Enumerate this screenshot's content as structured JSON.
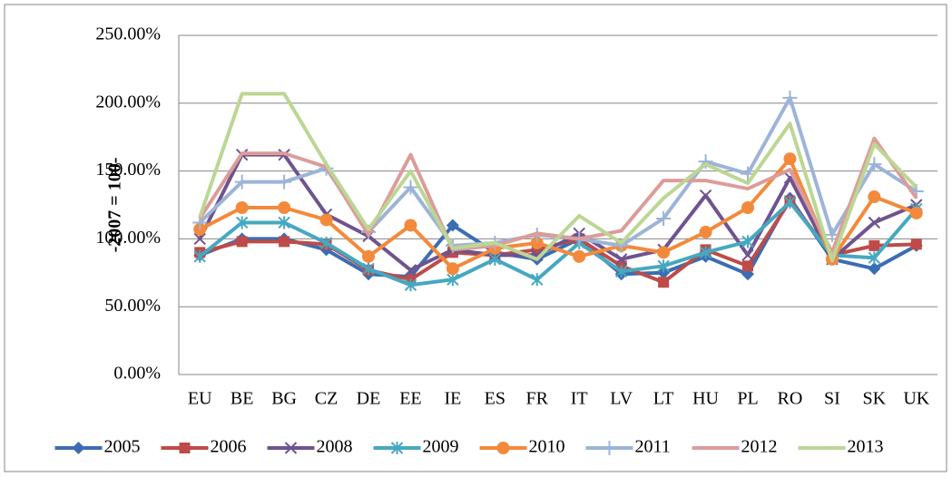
{
  "chart_data": {
    "type": "line",
    "y_label": "-2007 = 100-",
    "categories": [
      "EU",
      "BE",
      "BG",
      "CZ",
      "DE",
      "EE",
      "IE",
      "ES",
      "FR",
      "IT",
      "LV",
      "LT",
      "HU",
      "PL",
      "RO",
      "SI",
      "SK",
      "UK"
    ],
    "ylim": [
      0,
      250
    ],
    "yticks": [
      {
        "value": 0,
        "label": "0.00%"
      },
      {
        "value": 50,
        "label": "50.00%"
      },
      {
        "value": 100,
        "label": "100.00%"
      },
      {
        "value": 150,
        "label": "150.00%"
      },
      {
        "value": 200,
        "label": "200.00%"
      },
      {
        "value": 250,
        "label": "250.00%"
      }
    ],
    "grid": true,
    "legend": "bottom",
    "series": [
      {
        "name": "2005",
        "color": "#3b6db3",
        "marker": "diamond",
        "values": [
          88,
          100,
          100,
          92,
          74,
          72,
          110,
          90,
          85,
          100,
          74,
          75,
          87,
          74,
          130,
          85,
          78,
          95
        ]
      },
      {
        "name": "2006",
        "color": "#be4b48",
        "marker": "square",
        "values": [
          90,
          98,
          98,
          96,
          77,
          70,
          90,
          88,
          92,
          100,
          80,
          68,
          92,
          80,
          128,
          88,
          95,
          96
        ]
      },
      {
        "name": "2008",
        "color": "#6f538f",
        "marker": "x",
        "values": [
          100,
          162,
          162,
          118,
          102,
          77,
          92,
          88,
          88,
          104,
          85,
          92,
          132,
          88,
          145,
          85,
          112,
          125
        ]
      },
      {
        "name": "2009",
        "color": "#46a8c0",
        "marker": "star",
        "values": [
          87,
          112,
          112,
          97,
          78,
          66,
          70,
          85,
          70,
          97,
          76,
          80,
          90,
          98,
          127,
          88,
          86,
          122
        ]
      },
      {
        "name": "2010",
        "color": "#f38a3b",
        "marker": "circle",
        "values": [
          107,
          123,
          123,
          114,
          87,
          110,
          78,
          93,
          97,
          87,
          95,
          90,
          105,
          123,
          159,
          85,
          131,
          119
        ]
      },
      {
        "name": "2011",
        "color": "#9db4d8",
        "marker": "plus",
        "values": [
          112,
          142,
          142,
          152,
          105,
          138,
          95,
          97,
          103,
          100,
          95,
          115,
          157,
          148,
          204,
          103,
          155,
          135
        ]
      },
      {
        "name": "2012",
        "color": "#dc9c9a",
        "marker": "none",
        "values": [
          115,
          163,
          163,
          153,
          103,
          162,
          92,
          95,
          104,
          100,
          106,
          143,
          143,
          137,
          151,
          90,
          174,
          130
        ]
      },
      {
        "name": "2013",
        "color": "#bcd694",
        "marker": "none",
        "values": [
          116,
          207,
          207,
          155,
          107,
          150,
          93,
          97,
          85,
          117,
          97,
          130,
          155,
          141,
          185,
          84,
          170,
          138
        ]
      }
    ]
  }
}
